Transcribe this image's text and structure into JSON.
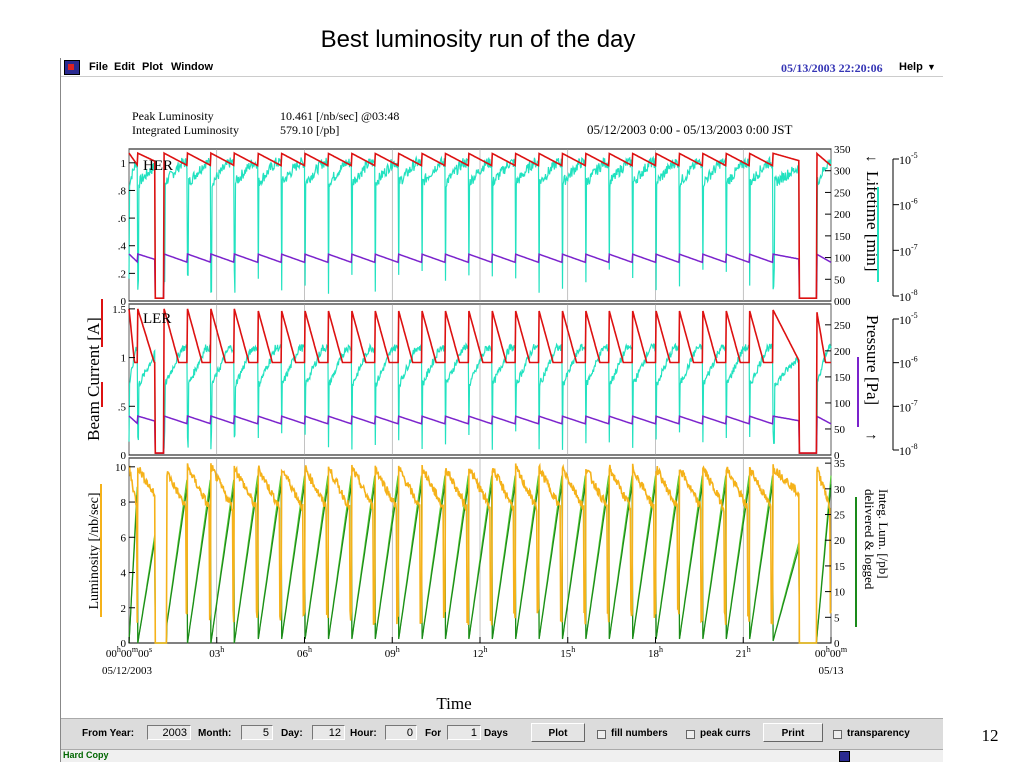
{
  "slide": {
    "title": "Best luminosity run of the day",
    "number": "12"
  },
  "menu": {
    "file": "File",
    "edit": "Edit",
    "plot": "Plot",
    "window": "Window",
    "help": "Help"
  },
  "datetime": "05/13/2003 22:20:06",
  "info": {
    "peak_label": "Peak Luminosity",
    "peak_value": "10.461  [/nb/sec] @03:48",
    "integrated_label": "Integrated Luminosity",
    "integrated_value": "579.10  [/pb]",
    "range": "05/12/2003 0:00 - 05/13/2003 0:00 JST"
  },
  "controls": {
    "from_year_label": "From Year:",
    "from_year": "2003",
    "month_label": "Month:",
    "month": "5",
    "day_label": "Day:",
    "day": "12",
    "hour_label": "Hour:",
    "hour": "0",
    "for_label": "For",
    "for_value": "1",
    "days_label": "Days",
    "plot_button": "Plot",
    "fill_numbers": "fill numbers",
    "peak_currs": "peak currs",
    "print_button": "Print",
    "transparency": "transparency"
  },
  "status": "Hard Copy",
  "colors": {
    "her": "#dd1111",
    "lifetime": "#22e2c0",
    "pressure": "#7a22cc",
    "luminosity": "#f5b21a",
    "integrated": "#1a8a1a",
    "accent_blue": "#3535b5"
  },
  "chart_data": [
    {
      "type": "line",
      "panel": "HER",
      "label": "HER",
      "xlim": [
        0,
        24
      ],
      "ylim": [
        0,
        1.1
      ],
      "y2lim": [
        0,
        350
      ],
      "left_ticks": [
        "0",
        ".2",
        ".4",
        ".6",
        ".8",
        "1"
      ],
      "right_ticks": [
        "000",
        "50",
        "100",
        "150",
        "200",
        "250",
        "300",
        "350"
      ],
      "log_ticks": [
        "-8",
        "-7",
        "-6",
        "-5"
      ],
      "series": [
        {
          "name": "Beam Current",
          "refill_times": [
            0.3,
            1.2,
            2.0,
            2.8,
            3.6,
            4.4,
            5.2,
            6.0,
            6.8,
            7.6,
            8.4,
            9.2,
            10.0,
            10.8,
            11.6,
            12.4,
            13.2,
            14.0,
            14.8,
            15.6,
            16.4,
            17.2,
            18.0,
            18.8,
            19.6,
            20.4,
            21.2,
            22.0,
            23.5
          ],
          "peak": 1.07,
          "trough": 0.98
        },
        {
          "name": "Lifetime",
          "level_range": [
            0.85,
            1.0
          ]
        },
        {
          "name": "Pressure",
          "level_range": [
            0.28,
            0.34
          ]
        }
      ]
    },
    {
      "type": "line",
      "panel": "LER",
      "label": "LER",
      "xlim": [
        0,
        24
      ],
      "ylim": [
        0,
        1.55
      ],
      "y2lim": [
        0,
        290
      ],
      "left_ticks": [
        "0",
        ".5",
        "1",
        "1.5"
      ],
      "right_ticks": [
        "0",
        "50",
        "100",
        "150",
        "200",
        "250"
      ],
      "log_ticks": [
        "-8",
        "-7",
        "-6",
        "-5"
      ],
      "series": [
        {
          "name": "Beam Current",
          "peak": 1.5,
          "trough": 0.95
        },
        {
          "name": "Lifetime",
          "level_range": [
            0.7,
            1.1
          ]
        },
        {
          "name": "Pressure",
          "level_range": [
            0.32,
            0.4
          ]
        }
      ]
    },
    {
      "type": "line",
      "panel": "Luminosity",
      "xlim": [
        0,
        24
      ],
      "ylim": [
        0,
        10.5
      ],
      "y2lim": [
        0,
        36
      ],
      "left_ticks": [
        "0",
        "2",
        "4",
        "6",
        "8",
        "10"
      ],
      "right_ticks": [
        "0",
        "5",
        "10",
        "15",
        "20",
        "25",
        "30",
        "35"
      ],
      "series": [
        {
          "name": "Luminosity",
          "peak": 10.0,
          "decay_to": 7.5
        },
        {
          "name": "Integ. Lum. delivered",
          "peak": 9.5
        },
        {
          "name": "Integ. Lum. logged",
          "peak": 9.0
        }
      ]
    }
  ],
  "axes": {
    "left1": "Beam Current [A]",
    "left2": "Luminosity [/nb/sec]",
    "right1": "Lifetime [min]",
    "right2": "Pressure [Pa]",
    "right3a": "Integ. Lum. [/pb]",
    "right3b": "delivered & logged",
    "xlabel": "Time",
    "x_ticks": [
      {
        "h": "00",
        "sup": "h",
        "extra": "00",
        "extra_sup": "m",
        "extra2": "00",
        "extra2_sup": "s"
      },
      {
        "h": "03",
        "sup": "h"
      },
      {
        "h": "06",
        "sup": "h"
      },
      {
        "h": "09",
        "sup": "h"
      },
      {
        "h": "12",
        "sup": "h"
      },
      {
        "h": "15",
        "sup": "h"
      },
      {
        "h": "18",
        "sup": "h"
      },
      {
        "h": "21",
        "sup": "h"
      },
      {
        "h": "00",
        "sup": "h",
        "extra": "00",
        "extra_sup": "m"
      }
    ],
    "x_date_start": "05/12/2003",
    "x_date_end": "05/13",
    "her_tag": "HER",
    "ler_tag": "LER",
    "log_base": "10",
    "lifetime_arrow": "↓",
    "pressure_arrow": "↑"
  }
}
